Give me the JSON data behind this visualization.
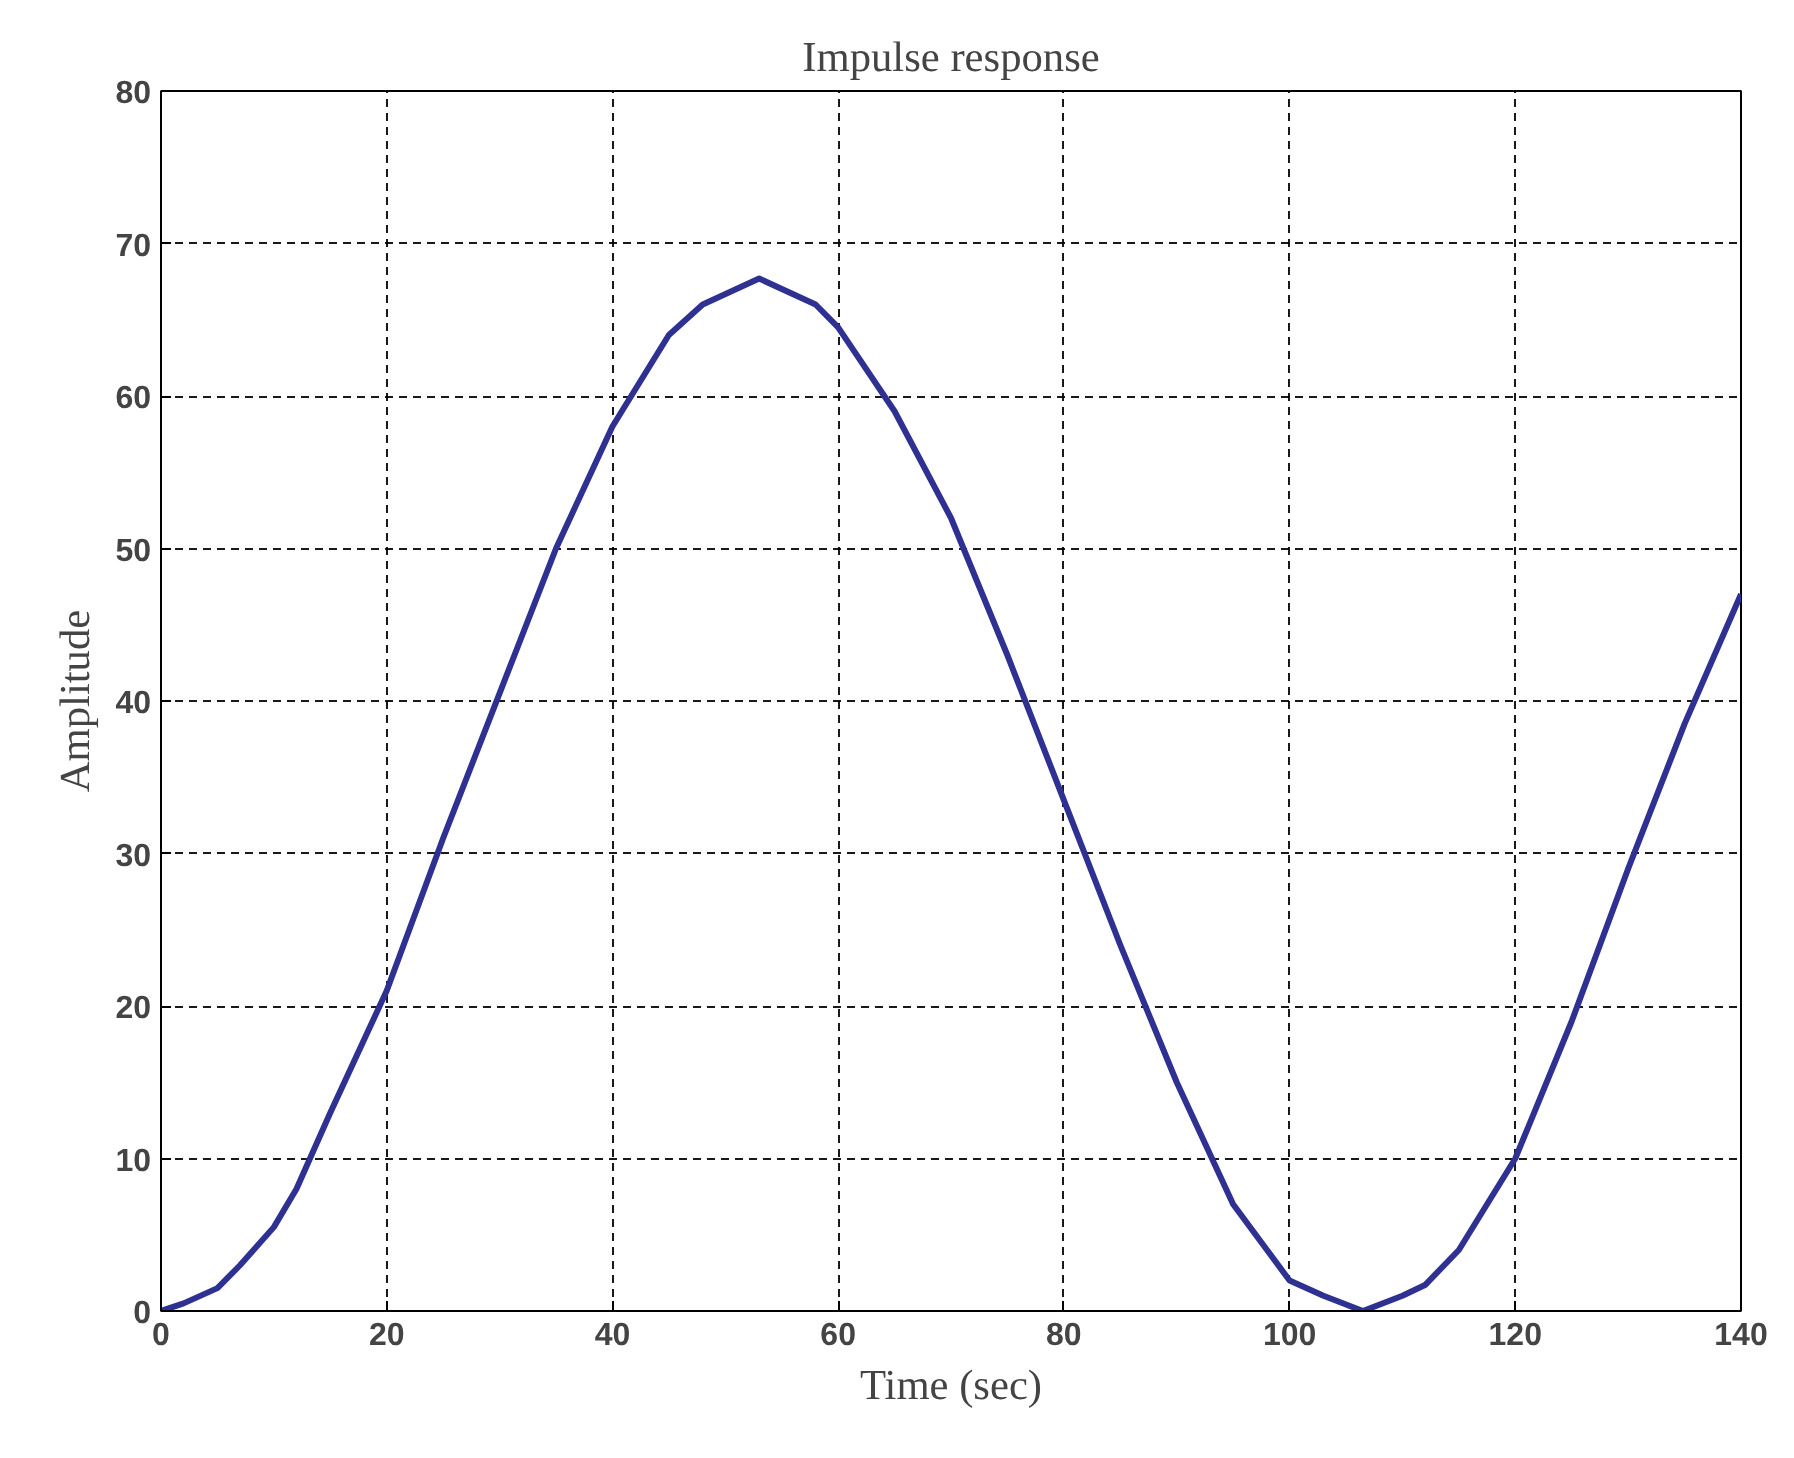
{
  "chart_data": {
    "type": "line",
    "title": "Impulse response",
    "xlabel": "Time (sec)",
    "ylabel": "Amplitude",
    "x": [
      0,
      2,
      5,
      7,
      10,
      12,
      15,
      20,
      25,
      30,
      35,
      40,
      45,
      48,
      53,
      58,
      60,
      65,
      70,
      75,
      80,
      85,
      90,
      95,
      100,
      103,
      106.5,
      110,
      112,
      115,
      120,
      125,
      130,
      135,
      140
    ],
    "series": [
      {
        "color": "#2e3192",
        "values": [
          0,
          0.5,
          1.5,
          3,
          5.5,
          8,
          13,
          21,
          31,
          40.5,
          50,
          58,
          64,
          66,
          67.7,
          66,
          64.5,
          59,
          52,
          43,
          33.5,
          24,
          15,
          7,
          2,
          1,
          0,
          1,
          1.7,
          4,
          10,
          19,
          29,
          38.5,
          47
        ]
      }
    ],
    "xlim": [
      0,
      140
    ],
    "ylim": [
      0,
      80
    ],
    "xticks": [
      0,
      20,
      40,
      60,
      80,
      100,
      120,
      140
    ],
    "yticks": [
      0,
      10,
      20,
      30,
      40,
      50,
      60,
      70,
      80
    ],
    "grid": true,
    "marker": "none",
    "line_style": "solid"
  }
}
